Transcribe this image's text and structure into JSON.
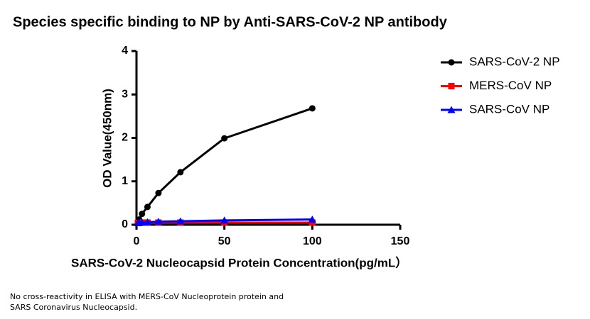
{
  "chart_data": {
    "type": "line",
    "title": "Species specific binding to NP by Anti-SARS-CoV-2 NP antibody",
    "x_label": "SARS-CoV-2 Nucleocapsid Protein Concentration(pg/mL）",
    "y_label": "OD Value(450nm)",
    "x": [
      0.78,
      1.5625,
      3.125,
      6.25,
      12.5,
      25,
      50,
      100
    ],
    "series": [
      {
        "name": "SARS-CoV-2 NP",
        "color": "#000000",
        "marker": "circle",
        "values": [
          0.05,
          0.12,
          0.25,
          0.41,
          0.73,
          1.21,
          1.99,
          2.68
        ]
      },
      {
        "name": "MERS-CoV NP",
        "color": "#ff0000",
        "marker": "square",
        "values": [
          0.04,
          0.04,
          0.05,
          0.05,
          0.05,
          0.05,
          0.05,
          0.05
        ]
      },
      {
        "name": "SARS-CoV NP",
        "color": "#0000ff",
        "marker": "triangle",
        "values": [
          0.04,
          0.05,
          0.05,
          0.06,
          0.07,
          0.08,
          0.1,
          0.12
        ]
      }
    ],
    "xlim": [
      0,
      150
    ],
    "xticks": [
      0,
      50,
      100,
      150
    ],
    "ylim": [
      0,
      4
    ],
    "yticks": [
      0,
      1,
      2,
      3,
      4
    ],
    "legend": "right",
    "note": [
      "No cross-reactivity in ELISA with MERS-CoV Nucleoprotein protein and",
      "SARS Coronavirus Nucleocapsid."
    ]
  }
}
